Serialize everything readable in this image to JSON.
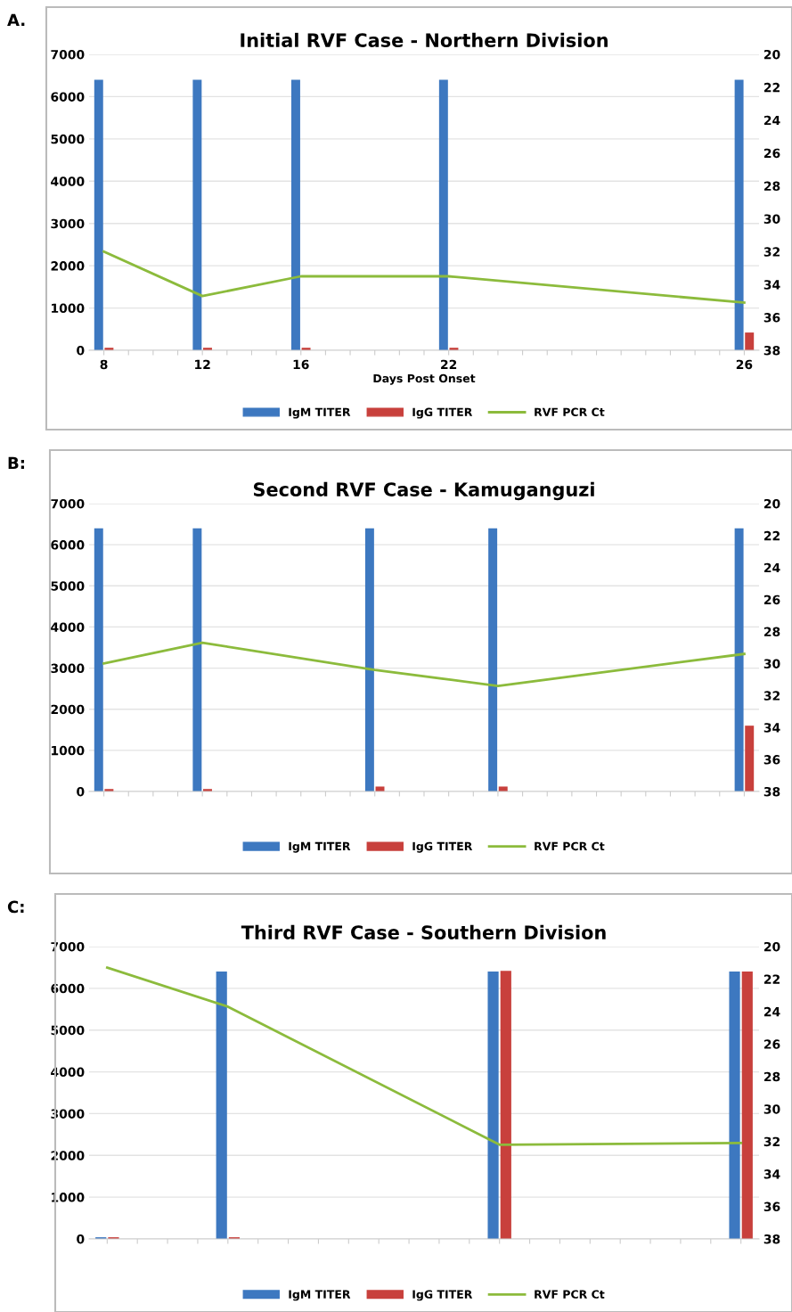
{
  "chart_data": [
    {
      "type": "bar",
      "title": "Initial RVF Case - Northern Division",
      "xlabel": "Days Post Onset",
      "annotations": [
        "A."
      ],
      "categories": [
        "8",
        null,
        null,
        null,
        "12",
        null,
        null,
        null,
        "16",
        null,
        null,
        null,
        null,
        null,
        "22",
        null,
        null,
        null,
        null,
        null,
        null,
        null,
        null,
        null,
        null,
        null,
        "26"
      ],
      "series": [
        {
          "name": "IgM TITER",
          "color": "#3d78c0",
          "values": [
            6400,
            null,
            null,
            null,
            6400,
            null,
            null,
            null,
            6400,
            null,
            null,
            null,
            null,
            null,
            6400,
            null,
            null,
            null,
            null,
            null,
            null,
            null,
            null,
            null,
            null,
            null,
            6400
          ]
        },
        {
          "name": "IgG TITER",
          "color": "#c8403c",
          "values": [
            60,
            null,
            null,
            null,
            60,
            null,
            null,
            null,
            60,
            null,
            null,
            null,
            null,
            null,
            60,
            null,
            null,
            null,
            null,
            null,
            null,
            null,
            null,
            null,
            null,
            null,
            420
          ]
        },
        {
          "name": "RVF PCR Ct",
          "type": "line",
          "axis": "y2",
          "color": "#8cbb3c",
          "values": [
            32.0,
            null,
            null,
            null,
            34.7,
            null,
            null,
            null,
            33.5,
            null,
            null,
            null,
            null,
            null,
            33.5,
            null,
            null,
            null,
            null,
            null,
            null,
            null,
            null,
            null,
            null,
            null,
            35.1
          ]
        }
      ],
      "ylim": [
        0,
        7000
      ],
      "yticks": [
        0,
        1000,
        2000,
        3000,
        4000,
        5000,
        6000,
        7000
      ],
      "y2lim": [
        38,
        20
      ],
      "y2ticks": [
        20,
        22,
        24,
        26,
        28,
        30,
        32,
        34,
        36,
        38
      ],
      "grid": "y",
      "legend": "bottom"
    },
    {
      "type": "bar",
      "title": "Second RVF Case - Kamuganguzi",
      "annotations": [
        "B:"
      ],
      "categories": [
        null,
        null,
        null,
        null,
        null,
        null,
        null,
        null,
        null,
        null,
        null,
        null,
        null,
        null,
        null,
        null,
        null,
        null,
        null,
        null,
        null,
        null,
        null,
        null,
        null,
        null,
        null
      ],
      "series": [
        {
          "name": "IgM TITER",
          "color": "#3d78c0",
          "values": [
            6400,
            null,
            null,
            null,
            6400,
            null,
            null,
            null,
            null,
            null,
            null,
            6400,
            null,
            null,
            null,
            null,
            6400,
            null,
            null,
            null,
            null,
            null,
            null,
            null,
            null,
            null,
            6400
          ]
        },
        {
          "name": "IgG TITER",
          "color": "#c8403c",
          "values": [
            60,
            null,
            null,
            null,
            60,
            null,
            null,
            null,
            null,
            null,
            null,
            120,
            null,
            null,
            null,
            null,
            120,
            null,
            null,
            null,
            null,
            null,
            null,
            null,
            null,
            null,
            1600
          ]
        },
        {
          "name": "RVF PCR Ct",
          "type": "line",
          "axis": "y2",
          "color": "#8cbb3c",
          "values": [
            30.0,
            null,
            null,
            null,
            28.7,
            null,
            null,
            null,
            null,
            null,
            null,
            30.4,
            null,
            null,
            null,
            null,
            31.4,
            null,
            null,
            null,
            null,
            null,
            null,
            null,
            null,
            null,
            29.4
          ]
        }
      ],
      "ylim": [
        0,
        7000
      ],
      "yticks": [
        0,
        1000,
        2000,
        3000,
        4000,
        5000,
        6000,
        7000
      ],
      "y2lim": [
        38,
        20
      ],
      "y2ticks": [
        20,
        22,
        24,
        26,
        28,
        30,
        32,
        34,
        36,
        38
      ],
      "grid": "y",
      "legend": "bottom"
    },
    {
      "type": "bar",
      "title": "Third RVF Case - Southern Division",
      "annotations": [
        "C:"
      ],
      "categories": [
        null,
        null,
        null,
        null,
        null,
        null,
        null,
        null,
        null,
        null,
        null,
        null,
        null,
        null,
        null,
        null,
        null,
        null,
        null,
        null,
        null,
        null
      ],
      "series": [
        {
          "name": "IgM TITER",
          "color": "#3d78c0",
          "values": [
            40,
            null,
            null,
            null,
            6400,
            null,
            null,
            null,
            null,
            null,
            null,
            null,
            null,
            6400,
            null,
            null,
            null,
            null,
            null,
            null,
            null,
            6400
          ]
        },
        {
          "name": "IgG TITER",
          "color": "#c8403c",
          "values": [
            40,
            null,
            null,
            null,
            40,
            null,
            null,
            null,
            null,
            null,
            null,
            null,
            null,
            6420,
            null,
            null,
            null,
            null,
            null,
            null,
            null,
            6400
          ]
        },
        {
          "name": "RVF PCR Ct",
          "type": "line",
          "axis": "y2",
          "color": "#8cbb3c",
          "values": [
            21.3,
            null,
            null,
            null,
            23.7,
            null,
            null,
            null,
            null,
            null,
            null,
            null,
            null,
            32.2,
            null,
            null,
            null,
            null,
            null,
            null,
            null,
            32.1
          ]
        }
      ],
      "ylim": [
        0,
        7000
      ],
      "yticks": [
        0,
        1000,
        2000,
        3000,
        4000,
        5000,
        6000,
        7000
      ],
      "y2lim": [
        38,
        20
      ],
      "y2ticks": [
        20,
        22,
        24,
        26,
        28,
        30,
        32,
        34,
        36,
        38
      ],
      "grid": "y",
      "legend": "bottom"
    }
  ]
}
